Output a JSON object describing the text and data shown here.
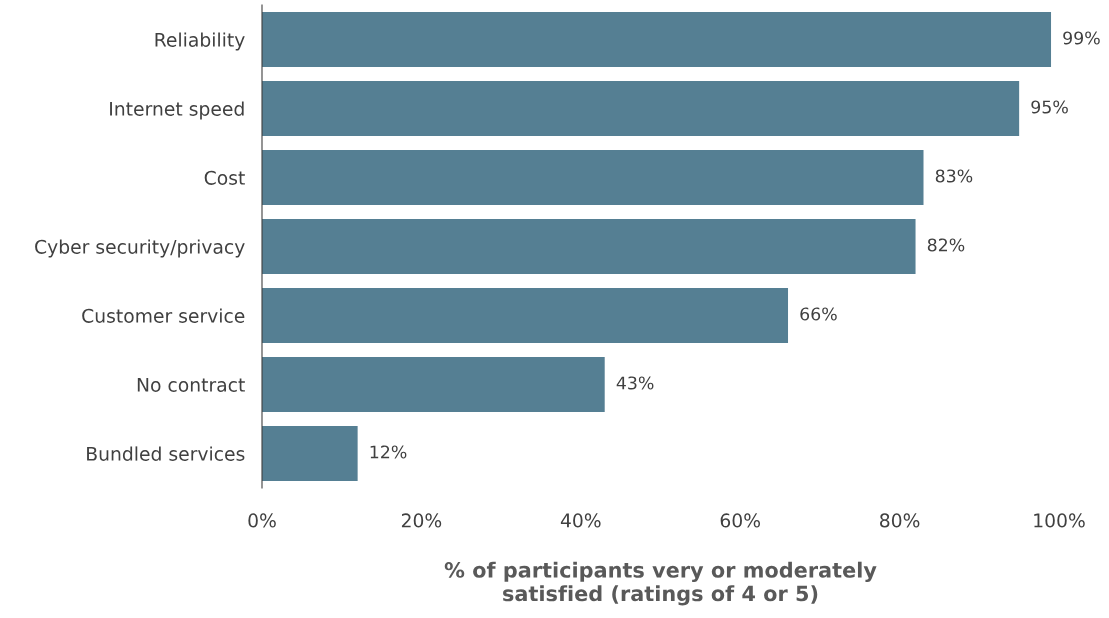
{
  "chart_data": {
    "type": "bar",
    "orientation": "horizontal",
    "xlabel": "% of participants very or moderately\nsatisfied (ratings of 4 or 5)",
    "categories": [
      "Reliability",
      "Internet speed",
      "Cost",
      "Cyber security/privacy",
      "Customer service",
      "No contract",
      "Bundled services"
    ],
    "values": [
      99,
      95,
      83,
      82,
      66,
      43,
      12
    ],
    "value_labels": [
      "99%",
      "95%",
      "83%",
      "82%",
      "66%",
      "43%",
      "12%"
    ],
    "color": "#557f93",
    "xlim": [
      0,
      100
    ],
    "xticks": [
      {
        "value": 0,
        "label": "0%"
      },
      {
        "value": 20,
        "label": "20%"
      },
      {
        "value": 40,
        "label": "40%"
      },
      {
        "value": 60,
        "label": "60%"
      },
      {
        "value": 80,
        "label": "80%"
      },
      {
        "value": 100,
        "label": "100%"
      }
    ],
    "grid": false,
    "legend": false
  }
}
